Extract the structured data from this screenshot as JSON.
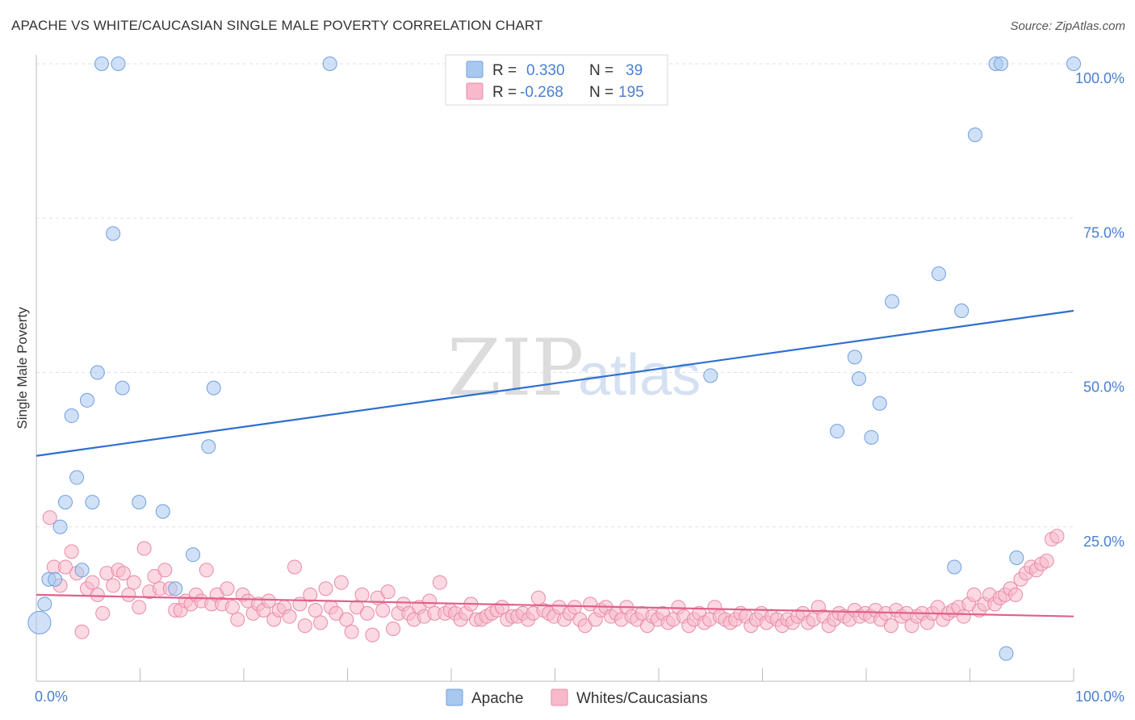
{
  "title": "APACHE VS WHITE/CAUCASIAN SINGLE MALE POVERTY CORRELATION CHART",
  "source": "Source: ZipAtlas.com",
  "watermark": {
    "zip": "ZIP",
    "atlas": "atlas"
  },
  "colors": {
    "apache_fill": "#a9c8f0",
    "apache_stroke": "#6f9fdf",
    "apache_line": "#2e6fd0",
    "white_fill": "#f7b9cb",
    "white_stroke": "#e98aa8",
    "white_line": "#e0608a",
    "axis_text": "#4a7fd0",
    "grid": "#e0e0e0"
  },
  "legend": {
    "rows": [
      {
        "r_label": "R =",
        "r_value": "0.330",
        "n_label": "N =",
        "n_value": "39"
      },
      {
        "r_label": "R =",
        "r_value": "-0.268",
        "n_label": "N =",
        "n_value": "195"
      }
    ]
  },
  "bottom_legend": [
    "Apache",
    "Whites/Caucasians"
  ],
  "chart_data": {
    "type": "scatter",
    "xlabel": "",
    "ylabel": "Single Male Poverty",
    "xlim": [
      0,
      100
    ],
    "ylim": [
      0,
      100
    ],
    "x_tick_labels": [
      "0.0%",
      "100.0%"
    ],
    "y_tick_labels": [
      "25.0%",
      "50.0%",
      "75.0%",
      "100.0%"
    ],
    "y_ticks": [
      25,
      50,
      75,
      100
    ],
    "grid": true,
    "legend_placement": "top-center",
    "series": [
      {
        "name": "Apache",
        "r": 0.33,
        "n": 39,
        "trend": {
          "x": [
            0,
            100
          ],
          "y": [
            36.5,
            60.0
          ]
        },
        "points": [
          {
            "x": 0.3,
            "y": 9.5,
            "s": 14
          },
          {
            "x": 0.8,
            "y": 12.5
          },
          {
            "x": 1.2,
            "y": 16.5
          },
          {
            "x": 1.8,
            "y": 16.5
          },
          {
            "x": 2.3,
            "y": 25
          },
          {
            "x": 2.8,
            "y": 29
          },
          {
            "x": 3.4,
            "y": 43
          },
          {
            "x": 3.9,
            "y": 33
          },
          {
            "x": 4.4,
            "y": 18
          },
          {
            "x": 4.9,
            "y": 45.5
          },
          {
            "x": 5.4,
            "y": 29
          },
          {
            "x": 5.9,
            "y": 50
          },
          {
            "x": 6.3,
            "y": 100
          },
          {
            "x": 7.4,
            "y": 72.5
          },
          {
            "x": 7.9,
            "y": 100
          },
          {
            "x": 8.3,
            "y": 47.5
          },
          {
            "x": 9.9,
            "y": 29
          },
          {
            "x": 12.2,
            "y": 27.5
          },
          {
            "x": 13.4,
            "y": 15
          },
          {
            "x": 15.1,
            "y": 20.5
          },
          {
            "x": 16.6,
            "y": 38
          },
          {
            "x": 17.1,
            "y": 47.5
          },
          {
            "x": 28.3,
            "y": 100
          },
          {
            "x": 65.0,
            "y": 49.5
          },
          {
            "x": 77.2,
            "y": 40.5
          },
          {
            "x": 78.9,
            "y": 52.5
          },
          {
            "x": 79.3,
            "y": 49
          },
          {
            "x": 80.5,
            "y": 39.5
          },
          {
            "x": 81.3,
            "y": 45
          },
          {
            "x": 82.5,
            "y": 61.5
          },
          {
            "x": 87.0,
            "y": 66
          },
          {
            "x": 88.5,
            "y": 18.5
          },
          {
            "x": 89.2,
            "y": 60
          },
          {
            "x": 90.5,
            "y": 88.5
          },
          {
            "x": 92.5,
            "y": 100
          },
          {
            "x": 93.0,
            "y": 100
          },
          {
            "x": 93.5,
            "y": 4.5
          },
          {
            "x": 94.5,
            "y": 20
          },
          {
            "x": 100,
            "y": 100
          }
        ]
      },
      {
        "name": "Whites/Caucasians",
        "r": -0.268,
        "n": 195,
        "trend": {
          "x": [
            0,
            100
          ],
          "y": [
            14.0,
            10.5
          ]
        },
        "points": [
          {
            "x": 1.3,
            "y": 26.5
          },
          {
            "x": 1.7,
            "y": 18.5
          },
          {
            "x": 2.3,
            "y": 15.5
          },
          {
            "x": 2.8,
            "y": 18.5
          },
          {
            "x": 3.4,
            "y": 21
          },
          {
            "x": 3.9,
            "y": 17.5
          },
          {
            "x": 4.4,
            "y": 8
          },
          {
            "x": 4.9,
            "y": 15
          },
          {
            "x": 5.4,
            "y": 16
          },
          {
            "x": 5.9,
            "y": 14
          },
          {
            "x": 6.4,
            "y": 11
          },
          {
            "x": 6.8,
            "y": 17.5
          },
          {
            "x": 7.4,
            "y": 15.5
          },
          {
            "x": 7.9,
            "y": 18
          },
          {
            "x": 8.4,
            "y": 17.5
          },
          {
            "x": 8.9,
            "y": 14
          },
          {
            "x": 9.4,
            "y": 16
          },
          {
            "x": 9.9,
            "y": 12
          },
          {
            "x": 10.4,
            "y": 21.5
          },
          {
            "x": 10.9,
            "y": 14.5
          },
          {
            "x": 11.4,
            "y": 17
          },
          {
            "x": 11.9,
            "y": 15
          },
          {
            "x": 12.4,
            "y": 18
          },
          {
            "x": 12.9,
            "y": 15
          },
          {
            "x": 13.4,
            "y": 11.5
          },
          {
            "x": 13.9,
            "y": 11.5
          },
          {
            "x": 14.4,
            "y": 13
          },
          {
            "x": 14.9,
            "y": 12.5
          },
          {
            "x": 15.4,
            "y": 14
          },
          {
            "x": 15.9,
            "y": 13
          },
          {
            "x": 16.4,
            "y": 18
          },
          {
            "x": 16.9,
            "y": 12.5
          },
          {
            "x": 17.4,
            "y": 14
          },
          {
            "x": 17.9,
            "y": 12.5
          },
          {
            "x": 18.4,
            "y": 15
          },
          {
            "x": 18.9,
            "y": 12
          },
          {
            "x": 19.4,
            "y": 10
          },
          {
            "x": 19.9,
            "y": 14
          },
          {
            "x": 20.4,
            "y": 13
          },
          {
            "x": 20.9,
            "y": 11
          },
          {
            "x": 21.4,
            "y": 12.5
          },
          {
            "x": 21.9,
            "y": 11.5
          },
          {
            "x": 22.4,
            "y": 13
          },
          {
            "x": 22.9,
            "y": 10
          },
          {
            "x": 23.4,
            "y": 11.5
          },
          {
            "x": 23.9,
            "y": 12
          },
          {
            "x": 24.4,
            "y": 10.5
          },
          {
            "x": 24.9,
            "y": 18.5
          },
          {
            "x": 25.4,
            "y": 12.5
          },
          {
            "x": 25.9,
            "y": 9
          },
          {
            "x": 26.4,
            "y": 14
          },
          {
            "x": 26.9,
            "y": 11.5
          },
          {
            "x": 27.4,
            "y": 9.5
          },
          {
            "x": 27.9,
            "y": 15
          },
          {
            "x": 28.4,
            "y": 12
          },
          {
            "x": 28.9,
            "y": 11
          },
          {
            "x": 29.4,
            "y": 16
          },
          {
            "x": 29.9,
            "y": 10
          },
          {
            "x": 30.4,
            "y": 8
          },
          {
            "x": 30.9,
            "y": 12
          },
          {
            "x": 31.4,
            "y": 14
          },
          {
            "x": 31.9,
            "y": 11
          },
          {
            "x": 32.4,
            "y": 7.5
          },
          {
            "x": 32.9,
            "y": 13.5
          },
          {
            "x": 33.4,
            "y": 11.5
          },
          {
            "x": 33.9,
            "y": 14.5
          },
          {
            "x": 34.4,
            "y": 8.5
          },
          {
            "x": 34.9,
            "y": 11
          },
          {
            "x": 35.4,
            "y": 12.5
          },
          {
            "x": 35.9,
            "y": 11
          },
          {
            "x": 36.4,
            "y": 10
          },
          {
            "x": 36.9,
            "y": 12
          },
          {
            "x": 37.4,
            "y": 10.5
          },
          {
            "x": 37.9,
            "y": 13
          },
          {
            "x": 38.4,
            "y": 11
          },
          {
            "x": 38.9,
            "y": 16
          },
          {
            "x": 39.4,
            "y": 11
          },
          {
            "x": 39.9,
            "y": 11.5
          },
          {
            "x": 40.4,
            "y": 11
          },
          {
            "x": 40.9,
            "y": 10
          },
          {
            "x": 41.4,
            "y": 11
          },
          {
            "x": 41.9,
            "y": 12.5
          },
          {
            "x": 42.4,
            "y": 10
          },
          {
            "x": 42.9,
            "y": 10
          },
          {
            "x": 43.4,
            "y": 10.5
          },
          {
            "x": 43.9,
            "y": 11
          },
          {
            "x": 44.4,
            "y": 11.5
          },
          {
            "x": 44.9,
            "y": 12
          },
          {
            "x": 45.4,
            "y": 10
          },
          {
            "x": 45.9,
            "y": 10.5
          },
          {
            "x": 46.4,
            "y": 10.5
          },
          {
            "x": 46.9,
            "y": 11
          },
          {
            "x": 47.4,
            "y": 10
          },
          {
            "x": 47.9,
            "y": 11
          },
          {
            "x": 48.4,
            "y": 13.5
          },
          {
            "x": 48.9,
            "y": 11.5
          },
          {
            "x": 49.4,
            "y": 11
          },
          {
            "x": 49.9,
            "y": 10.5
          },
          {
            "x": 50.4,
            "y": 12
          },
          {
            "x": 50.9,
            "y": 10
          },
          {
            "x": 51.4,
            "y": 11
          },
          {
            "x": 51.9,
            "y": 12
          },
          {
            "x": 52.4,
            "y": 10
          },
          {
            "x": 52.9,
            "y": 9
          },
          {
            "x": 53.4,
            "y": 12.5
          },
          {
            "x": 53.9,
            "y": 10
          },
          {
            "x": 54.4,
            "y": 11.5
          },
          {
            "x": 54.9,
            "y": 12
          },
          {
            "x": 55.4,
            "y": 10.5
          },
          {
            "x": 55.9,
            "y": 11
          },
          {
            "x": 56.4,
            "y": 10
          },
          {
            "x": 56.9,
            "y": 12
          },
          {
            "x": 57.4,
            "y": 10.5
          },
          {
            "x": 57.9,
            "y": 10
          },
          {
            "x": 58.4,
            "y": 11
          },
          {
            "x": 58.9,
            "y": 9
          },
          {
            "x": 59.4,
            "y": 10.5
          },
          {
            "x": 59.9,
            "y": 10
          },
          {
            "x": 60.4,
            "y": 11
          },
          {
            "x": 60.9,
            "y": 9.5
          },
          {
            "x": 61.4,
            "y": 10
          },
          {
            "x": 61.9,
            "y": 12
          },
          {
            "x": 62.4,
            "y": 10.5
          },
          {
            "x": 62.9,
            "y": 9
          },
          {
            "x": 63.4,
            "y": 10
          },
          {
            "x": 63.9,
            "y": 11
          },
          {
            "x": 64.4,
            "y": 9.5
          },
          {
            "x": 64.9,
            "y": 10
          },
          {
            "x": 65.4,
            "y": 12
          },
          {
            "x": 65.9,
            "y": 10.5
          },
          {
            "x": 66.4,
            "y": 10
          },
          {
            "x": 66.9,
            "y": 9.5
          },
          {
            "x": 67.4,
            "y": 10
          },
          {
            "x": 67.9,
            "y": 11
          },
          {
            "x": 68.4,
            "y": 10.5
          },
          {
            "x": 68.9,
            "y": 9
          },
          {
            "x": 69.4,
            "y": 10
          },
          {
            "x": 69.9,
            "y": 11
          },
          {
            "x": 70.4,
            "y": 9.5
          },
          {
            "x": 70.9,
            "y": 10.5
          },
          {
            "x": 71.4,
            "y": 10
          },
          {
            "x": 71.9,
            "y": 9
          },
          {
            "x": 72.4,
            "y": 10
          },
          {
            "x": 72.9,
            "y": 9.5
          },
          {
            "x": 73.4,
            "y": 10.5
          },
          {
            "x": 73.9,
            "y": 11
          },
          {
            "x": 74.4,
            "y": 9.5
          },
          {
            "x": 74.9,
            "y": 10
          },
          {
            "x": 75.4,
            "y": 12
          },
          {
            "x": 75.9,
            "y": 10.5
          },
          {
            "x": 76.4,
            "y": 9
          },
          {
            "x": 76.9,
            "y": 10
          },
          {
            "x": 77.4,
            "y": 11
          },
          {
            "x": 77.9,
            "y": 10.5
          },
          {
            "x": 78.4,
            "y": 10
          },
          {
            "x": 78.9,
            "y": 11.5
          },
          {
            "x": 79.4,
            "y": 10.5
          },
          {
            "x": 79.9,
            "y": 11
          },
          {
            "x": 80.4,
            "y": 10.5
          },
          {
            "x": 80.9,
            "y": 11.5
          },
          {
            "x": 81.4,
            "y": 10
          },
          {
            "x": 81.9,
            "y": 11
          },
          {
            "x": 82.4,
            "y": 9
          },
          {
            "x": 82.9,
            "y": 11.5
          },
          {
            "x": 83.4,
            "y": 10.5
          },
          {
            "x": 83.9,
            "y": 11
          },
          {
            "x": 84.4,
            "y": 9
          },
          {
            "x": 84.9,
            "y": 10.5
          },
          {
            "x": 85.4,
            "y": 11
          },
          {
            "x": 85.9,
            "y": 9.5
          },
          {
            "x": 86.4,
            "y": 11
          },
          {
            "x": 86.9,
            "y": 12
          },
          {
            "x": 87.4,
            "y": 10
          },
          {
            "x": 87.9,
            "y": 11
          },
          {
            "x": 88.4,
            "y": 11.5
          },
          {
            "x": 88.9,
            "y": 12
          },
          {
            "x": 89.4,
            "y": 10.5
          },
          {
            "x": 89.9,
            "y": 12.5
          },
          {
            "x": 90.4,
            "y": 14
          },
          {
            "x": 90.9,
            "y": 11.5
          },
          {
            "x": 91.4,
            "y": 12.5
          },
          {
            "x": 91.9,
            "y": 14
          },
          {
            "x": 92.4,
            "y": 12.5
          },
          {
            "x": 92.9,
            "y": 13.5
          },
          {
            "x": 93.4,
            "y": 14
          },
          {
            "x": 93.9,
            "y": 15
          },
          {
            "x": 94.4,
            "y": 14
          },
          {
            "x": 94.9,
            "y": 16.5
          },
          {
            "x": 95.4,
            "y": 17.5
          },
          {
            "x": 95.9,
            "y": 18.5
          },
          {
            "x": 96.4,
            "y": 18
          },
          {
            "x": 96.9,
            "y": 19
          },
          {
            "x": 97.4,
            "y": 19.5
          },
          {
            "x": 97.9,
            "y": 23
          },
          {
            "x": 98.4,
            "y": 23.5
          }
        ]
      }
    ]
  }
}
